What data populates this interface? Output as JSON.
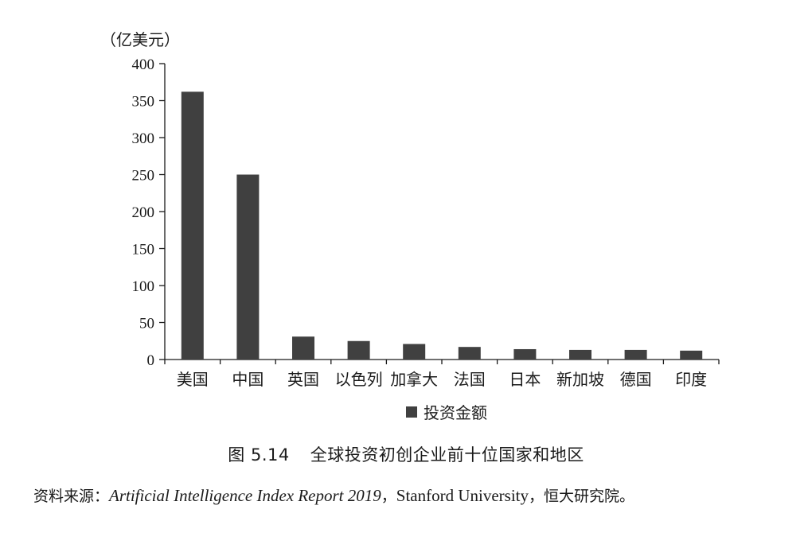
{
  "chart_data": {
    "type": "bar",
    "unit_label": "（亿美元）",
    "categories": [
      "美国",
      "中国",
      "英国",
      "以色列",
      "加拿大",
      "法国",
      "日本",
      "新加坡",
      "德国",
      "印度"
    ],
    "series": [
      {
        "name": "投资金额",
        "values": [
          362,
          250,
          31,
          25,
          21,
          17,
          14,
          13,
          13,
          12
        ]
      }
    ],
    "ylim": [
      0,
      400
    ],
    "yticks": [
      0,
      50,
      100,
      150,
      200,
      250,
      300,
      350,
      400
    ],
    "grid": false,
    "legend": "bottom",
    "bar_color": "#404040"
  },
  "caption": {
    "figure_number": "图 5.14",
    "title": "全球投资初创企业前十位国家和地区"
  },
  "source": {
    "prefix": "资料来源：",
    "report": "Artificial Intelligence Index Report 2019",
    "sep1": "，",
    "org": "Stanford University",
    "sep2": "，",
    "suffix": "恒大研究院。"
  }
}
